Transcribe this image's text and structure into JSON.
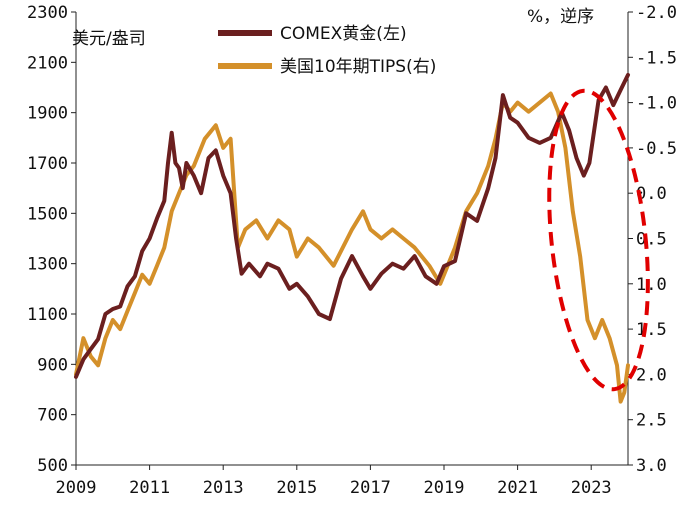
{
  "chart_data": {
    "type": "line",
    "title": "",
    "xlabel": "",
    "left_unit": "美元/盎司",
    "right_unit": "%，逆序",
    "x_range": [
      2009,
      2024.0
    ],
    "x_ticks": [
      "2009",
      "2011",
      "2013",
      "2015",
      "2017",
      "2019",
      "2021",
      "2023"
    ],
    "y_left": {
      "range": [
        500,
        2300
      ],
      "ticks": [
        "500",
        "700",
        "900",
        "1100",
        "1300",
        "1500",
        "1700",
        "1900",
        "2100",
        "2300"
      ]
    },
    "y_right": {
      "range": [
        3.0,
        -2.0
      ],
      "inverted": true,
      "ticks": [
        "-2.0",
        "-1.5",
        "-1.0",
        "-0.5",
        "0.0",
        "0.5",
        "1.0",
        "1.5",
        "2.0",
        "2.5",
        "3.0"
      ]
    },
    "legend_location": "top-center",
    "annotation": "red dashed ellipse highlighting 2022-2023 divergence",
    "colors": {
      "gold": "#6b1f1f",
      "tips": "#d4902a",
      "annotation": "#e00000"
    },
    "series": [
      {
        "name": "COMEX黄金(左)",
        "axis": "left",
        "color": "#6b1f1f",
        "x": [
          2009.0,
          2009.2,
          2009.4,
          2009.6,
          2009.8,
          2010.0,
          2010.2,
          2010.4,
          2010.6,
          2010.8,
          2011.0,
          2011.2,
          2011.4,
          2011.5,
          2011.6,
          2011.7,
          2011.8,
          2011.9,
          2012.0,
          2012.2,
          2012.4,
          2012.6,
          2012.8,
          2013.0,
          2013.2,
          2013.35,
          2013.5,
          2013.7,
          2014.0,
          2014.2,
          2014.5,
          2014.8,
          2015.0,
          2015.3,
          2015.6,
          2015.9,
          2016.2,
          2016.5,
          2016.8,
          2017.0,
          2017.3,
          2017.6,
          2017.9,
          2018.2,
          2018.5,
          2018.8,
          2019.0,
          2019.3,
          2019.6,
          2019.9,
          2020.2,
          2020.4,
          2020.6,
          2020.8,
          2021.0,
          2021.3,
          2021.6,
          2021.9,
          2022.2,
          2022.4,
          2022.6,
          2022.8,
          2022.95,
          2023.2,
          2023.4,
          2023.6,
          2023.8,
          2024.0
        ],
        "values": [
          850,
          920,
          960,
          1000,
          1100,
          1120,
          1130,
          1210,
          1250,
          1350,
          1400,
          1480,
          1550,
          1700,
          1820,
          1700,
          1680,
          1600,
          1700,
          1650,
          1580,
          1720,
          1750,
          1650,
          1580,
          1400,
          1260,
          1300,
          1250,
          1300,
          1280,
          1200,
          1220,
          1170,
          1100,
          1080,
          1240,
          1330,
          1250,
          1200,
          1260,
          1300,
          1280,
          1330,
          1250,
          1220,
          1290,
          1310,
          1500,
          1470,
          1600,
          1720,
          1970,
          1880,
          1860,
          1800,
          1780,
          1800,
          1900,
          1830,
          1720,
          1650,
          1700,
          1950,
          2000,
          1930,
          1990,
          2050
        ]
      },
      {
        "name": "美国10年期TIPS(右)",
        "axis": "right",
        "color": "#d4902a",
        "x": [
          2009.0,
          2009.2,
          2009.4,
          2009.6,
          2009.8,
          2010.0,
          2010.2,
          2010.4,
          2010.6,
          2010.8,
          2011.0,
          2011.2,
          2011.4,
          2011.6,
          2011.8,
          2012.0,
          2012.2,
          2012.5,
          2012.8,
          2013.0,
          2013.2,
          2013.4,
          2013.6,
          2013.9,
          2014.2,
          2014.5,
          2014.8,
          2015.0,
          2015.3,
          2015.6,
          2016.0,
          2016.5,
          2016.8,
          2017.0,
          2017.3,
          2017.6,
          2017.9,
          2018.2,
          2018.6,
          2018.9,
          2019.0,
          2019.3,
          2019.6,
          2019.9,
          2020.2,
          2020.4,
          2020.6,
          2020.8,
          2021.0,
          2021.3,
          2021.6,
          2021.9,
          2022.1,
          2022.3,
          2022.5,
          2022.7,
          2022.9,
          2023.1,
          2023.3,
          2023.5,
          2023.7,
          2023.8,
          2023.9,
          2024.0
        ],
        "values": [
          2.0,
          1.6,
          1.8,
          1.9,
          1.6,
          1.4,
          1.5,
          1.3,
          1.1,
          0.9,
          1.0,
          0.8,
          0.6,
          0.2,
          0.0,
          -0.2,
          -0.3,
          -0.6,
          -0.75,
          -0.5,
          -0.6,
          0.6,
          0.4,
          0.3,
          0.5,
          0.3,
          0.4,
          0.7,
          0.5,
          0.6,
          0.8,
          0.4,
          0.2,
          0.4,
          0.5,
          0.4,
          0.5,
          0.6,
          0.8,
          1.0,
          0.9,
          0.6,
          0.2,
          0.0,
          -0.3,
          -0.6,
          -1.0,
          -0.9,
          -1.0,
          -0.9,
          -1.0,
          -1.1,
          -0.9,
          -0.5,
          0.2,
          0.7,
          1.4,
          1.6,
          1.4,
          1.6,
          1.9,
          2.3,
          2.2,
          1.9
        ]
      }
    ]
  }
}
